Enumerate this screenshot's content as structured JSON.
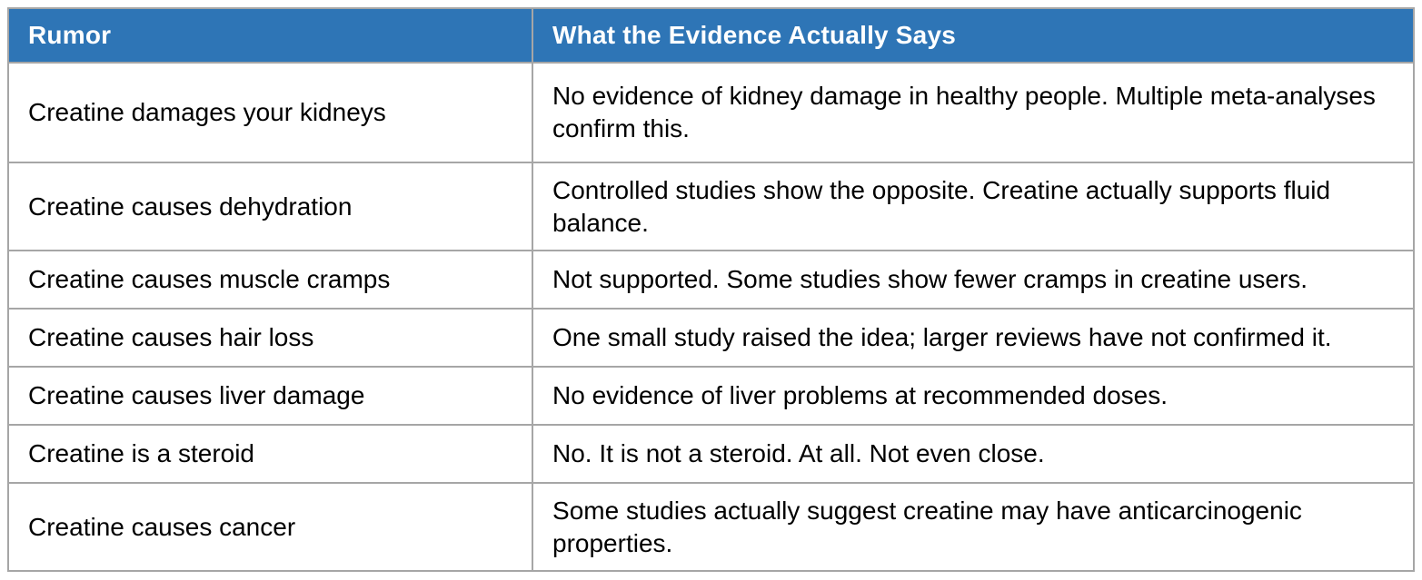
{
  "table": {
    "columns": [
      {
        "label": "Rumor"
      },
      {
        "label": "What the Evidence Actually Says"
      }
    ],
    "rows": [
      {
        "rumor": "Creatine damages your kidneys",
        "evidence": "No evidence of kidney damage in healthy people. Multiple meta-analyses confirm this."
      },
      {
        "rumor": "Creatine causes dehydration",
        "evidence": "Controlled studies show the opposite. Creatine actually supports fluid balance."
      },
      {
        "rumor": "Creatine causes muscle cramps",
        "evidence": "Not supported. Some studies show fewer cramps in creatine users."
      },
      {
        "rumor": "Creatine causes hair loss",
        "evidence": "One small study raised the idea; larger reviews have not confirmed it."
      },
      {
        "rumor": "Creatine causes liver damage",
        "evidence": "No evidence of liver problems at recommended doses."
      },
      {
        "rumor": "Creatine is a steroid",
        "evidence": "No. It is not a steroid. At all. Not even close."
      },
      {
        "rumor": "Creatine causes cancer",
        "evidence": "Some studies actually suggest creatine may have anticarcinogenic properties."
      }
    ]
  },
  "colors": {
    "header_bg": "#2E75B6",
    "header_text": "#FFFFFF",
    "body_bg": "#FFFFFF",
    "body_text": "#000000",
    "border": "#A6A6A6"
  }
}
